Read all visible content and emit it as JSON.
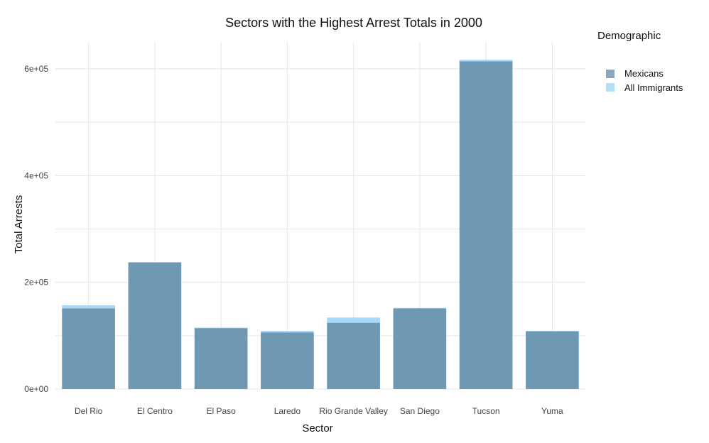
{
  "chart_data": {
    "type": "bar",
    "title": "Sectors with the Highest Arrest Totals in 2000",
    "xlabel": "Sector",
    "ylabel": "Total Arrests",
    "categories": [
      "Del Rio",
      "El Centro",
      "El Paso",
      "Laredo",
      "Rio Grande Valley",
      "San Diego",
      "Tucson",
      "Yuma"
    ],
    "series": [
      {
        "name": "All Immigrants",
        "color": "#a9d8f6",
        "values": [
          157000,
          238000,
          115000,
          109000,
          134000,
          152000,
          617000,
          109000
        ]
      },
      {
        "name": "Mexicans",
        "color": "#6f98b3",
        "values": [
          151000,
          237000,
          114000,
          106000,
          124000,
          151000,
          614000,
          108000
        ]
      }
    ],
    "ylim": [
      0,
      640000
    ],
    "yticks": [
      0,
      200000,
      400000,
      600000
    ],
    "ytick_labels": [
      "0e+00",
      "2e+05",
      "4e+05",
      "6e+05"
    ],
    "grid": true,
    "legend": {
      "title": "Demographic",
      "position": "right",
      "items": [
        {
          "label": "Mexicans",
          "color": "#8ea6ba"
        },
        {
          "label": "All Immigrants",
          "color": "#b5def8"
        }
      ]
    }
  }
}
